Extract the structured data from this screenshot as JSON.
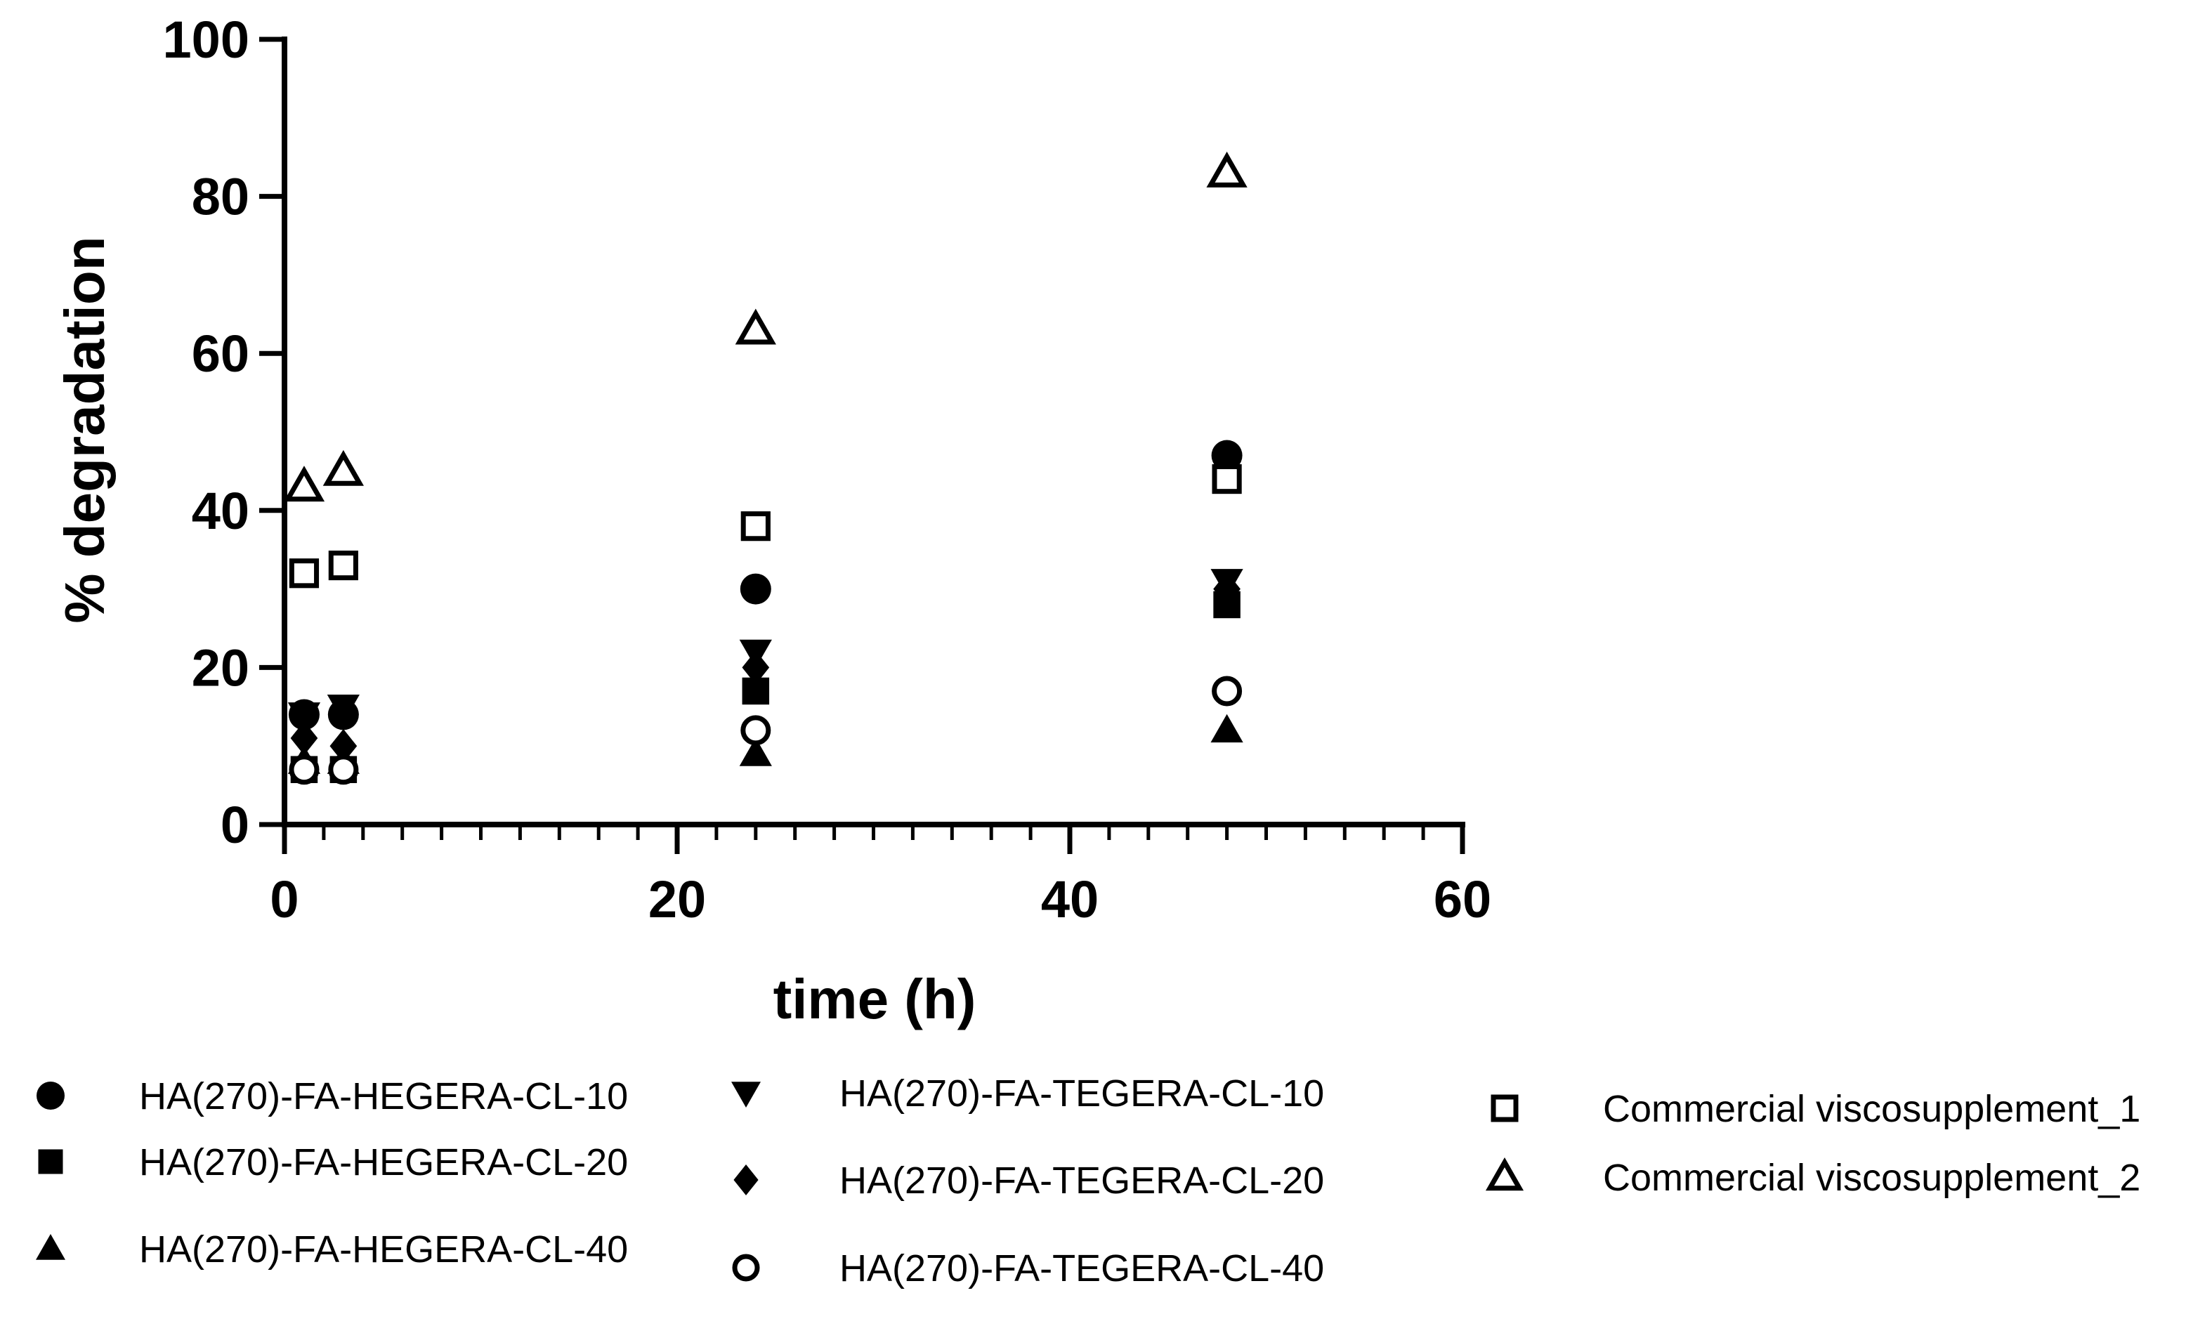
{
  "chart_data": {
    "type": "scatter",
    "xlabel": "time (h)",
    "ylabel": "% degradation",
    "xlim": [
      0,
      60
    ],
    "ylim": [
      0,
      100
    ],
    "x_ticks": [
      "0",
      "20",
      "40",
      "60"
    ],
    "y_ticks": [
      "0",
      "20",
      "40",
      "60",
      "80",
      "100"
    ],
    "x_minor_step": 2,
    "grid": false,
    "legend_position": "bottom",
    "series": [
      {
        "name": "HA(270)-FA-HEGERA-CL-10",
        "marker": "circle",
        "filled": true,
        "x": [
          1,
          3,
          24,
          48
        ],
        "y": [
          14,
          14,
          30,
          47
        ]
      },
      {
        "name": "HA(270)-FA-HEGERA-CL-20",
        "marker": "square",
        "filled": true,
        "x": [
          1,
          3,
          24,
          48
        ],
        "y": [
          7,
          7,
          17,
          28
        ]
      },
      {
        "name": "HA(270)-FA-HEGERA-CL-40",
        "marker": "triangle-up",
        "filled": true,
        "x": [
          1,
          3,
          24,
          48
        ],
        "y": [
          8,
          8,
          9,
          12
        ]
      },
      {
        "name": "HA(270)-FA-TEGERA-CL-10",
        "marker": "triangle-down",
        "filled": true,
        "x": [
          1,
          3,
          24,
          48
        ],
        "y": [
          14,
          15,
          22,
          31
        ]
      },
      {
        "name": "HA(270)-FA-TEGERA-CL-20",
        "marker": "diamond",
        "filled": true,
        "x": [
          1,
          3,
          24,
          48
        ],
        "y": [
          11,
          10,
          20,
          30
        ]
      },
      {
        "name": "HA(270)-FA-TEGERA-CL-40",
        "marker": "circle",
        "filled": false,
        "x": [
          1,
          3,
          24,
          48
        ],
        "y": [
          7,
          7,
          12,
          17
        ]
      },
      {
        "name": "Commercial viscosupplement_1",
        "marker": "square",
        "filled": false,
        "x": [
          1,
          3,
          24,
          48
        ],
        "y": [
          32,
          33,
          38,
          44
        ]
      },
      {
        "name": "Commercial viscosupplement_2",
        "marker": "triangle-up",
        "filled": false,
        "x": [
          1,
          3,
          24,
          48
        ],
        "y": [
          43,
          45,
          63,
          83
        ]
      }
    ]
  }
}
